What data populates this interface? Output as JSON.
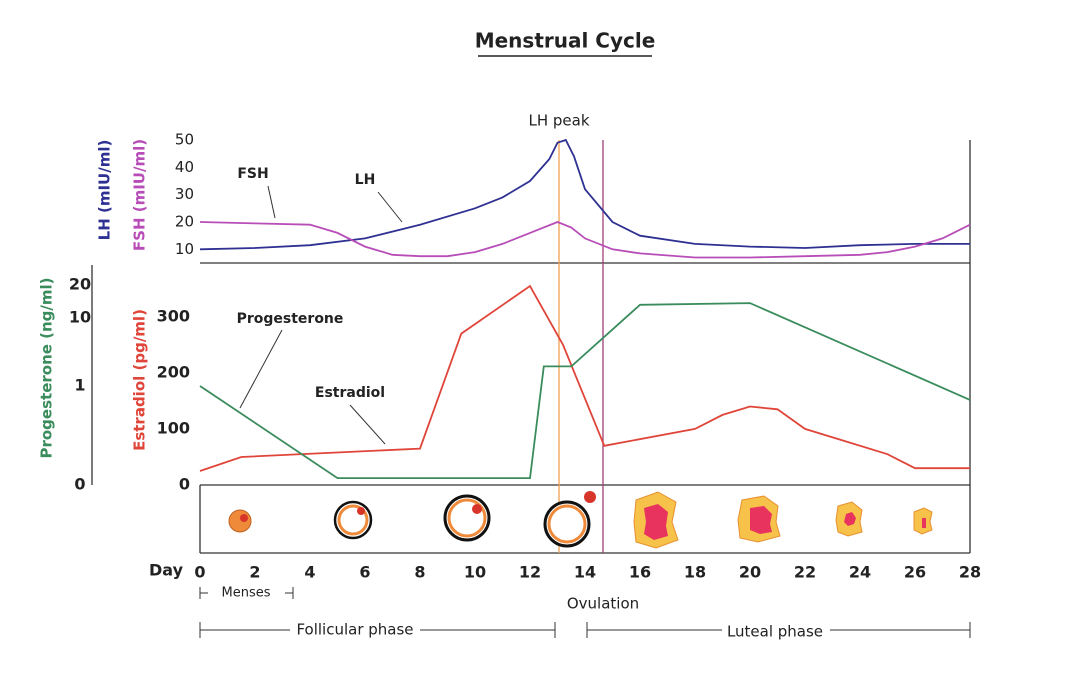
{
  "chart_data": [
    {
      "type": "line",
      "title": "Menstrual Cycle",
      "xlabel": "Day",
      "xlim": [
        0,
        28
      ],
      "xticks": [
        0,
        2,
        4,
        6,
        8,
        10,
        12,
        14,
        16,
        18,
        20,
        22,
        24,
        26,
        28
      ],
      "ylim": [
        5,
        50
      ],
      "yticks": [
        10,
        20,
        30,
        40,
        50
      ],
      "annotations": {
        "lh_peak": "LH peak",
        "ovulation": "Ovulation",
        "menses": "Menses",
        "follicular": "Follicular phase",
        "luteal": "Luteal phase"
      },
      "series": [
        {
          "name": "LH",
          "axis_label": "LH (mIU/ml)",
          "color": "#2e3192",
          "x": [
            0,
            2,
            4,
            6,
            8,
            10,
            11,
            12,
            12.7,
            13,
            13.3,
            13.6,
            14,
            15,
            16,
            18,
            20,
            22,
            24,
            26,
            28
          ],
          "values": [
            10,
            10.5,
            11.5,
            14,
            19,
            25,
            29,
            35,
            43,
            49,
            50,
            44,
            32,
            20,
            15,
            12,
            11,
            10.5,
            11.5,
            12,
            12
          ]
        },
        {
          "name": "FSH",
          "axis_label": "FSH (mIU/ml)",
          "color": "#b84db8",
          "x": [
            0,
            2,
            4,
            5,
            6,
            7,
            8,
            9,
            10,
            11,
            12,
            13,
            13.5,
            14,
            15,
            16,
            18,
            20,
            22,
            24,
            25,
            26,
            27,
            28
          ],
          "values": [
            20,
            19.5,
            19,
            16,
            11,
            8,
            7.5,
            7.5,
            9,
            12,
            16,
            20,
            18,
            14,
            10,
            8.5,
            7,
            7,
            7.5,
            8,
            9,
            11,
            14,
            19
          ]
        }
      ]
    },
    {
      "type": "line",
      "ylim": [
        0,
        396
      ],
      "yticks": [
        0,
        100,
        200,
        300
      ],
      "y2lim": [
        0,
        20
      ],
      "y2ticks": [
        0,
        1,
        10,
        20
      ],
      "series": [
        {
          "name": "Estradiol",
          "axis_label": "Estradiol (pg/ml)",
          "color": "#e0453a",
          "x": [
            0,
            1.5,
            8,
            9.5,
            12,
            13.2,
            14.7,
            18,
            19,
            20,
            21,
            22,
            25,
            26,
            28
          ],
          "values": [
            25,
            50,
            65,
            270,
            355,
            250,
            70,
            100,
            125,
            140,
            135,
            100,
            55,
            30,
            30
          ]
        },
        {
          "name": "Progesterone",
          "axis_label": "Progesterone (ng/ml)",
          "color": "#3a8c5c",
          "axis": "y2",
          "x": [
            0,
            5,
            12,
            12.5,
            13.5,
            16,
            20,
            28
          ],
          "values": [
            1,
            0.07,
            0.07,
            3.6,
            3.6,
            14,
            14.5,
            0.86
          ]
        }
      ]
    }
  ]
}
